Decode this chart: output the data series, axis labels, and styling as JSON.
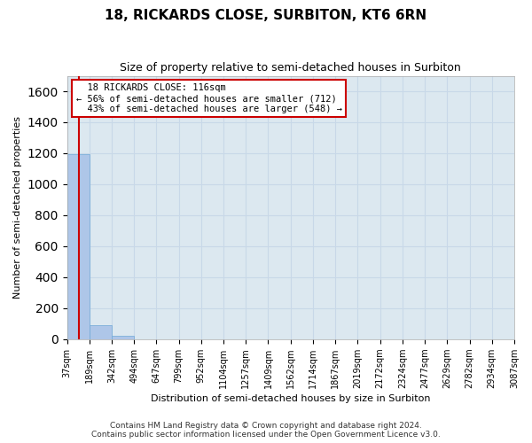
{
  "title": "18, RICKARDS CLOSE, SURBITON, KT6 6RN",
  "subtitle": "Size of property relative to semi-detached houses in Surbiton",
  "xlabel": "Distribution of semi-detached houses by size in Surbiton",
  "ylabel": "Number of semi-detached properties",
  "bin_edges": [
    37,
    189,
    342,
    494,
    647,
    799,
    952,
    1104,
    1257,
    1409,
    1562,
    1714,
    1867,
    2019,
    2172,
    2324,
    2477,
    2629,
    2782,
    2934,
    3087
  ],
  "bin_labels": [
    "37sqm",
    "189sqm",
    "342sqm",
    "494sqm",
    "647sqm",
    "799sqm",
    "952sqm",
    "1104sqm",
    "1257sqm",
    "1409sqm",
    "1562sqm",
    "1714sqm",
    "1867sqm",
    "2019sqm",
    "2172sqm",
    "2324sqm",
    "2477sqm",
    "2629sqm",
    "2782sqm",
    "2934sqm",
    "3087sqm"
  ],
  "bar_values": [
    1192,
    90,
    20,
    0,
    0,
    0,
    0,
    0,
    0,
    0,
    0,
    0,
    0,
    0,
    0,
    0,
    0,
    0,
    0,
    0
  ],
  "bar_color": "#aec6e8",
  "bar_edge_color": "#6fa8d6",
  "ylim": [
    0,
    1700
  ],
  "yticks": [
    0,
    200,
    400,
    600,
    800,
    1000,
    1200,
    1400,
    1600
  ],
  "property_size": 116,
  "property_label": "18 RICKARDS CLOSE: 116sqm",
  "pct_smaller": 56,
  "num_smaller": 712,
  "pct_larger": 43,
  "num_larger": 548,
  "annotation_box_color": "#ffffff",
  "annotation_box_edge_color": "#cc0000",
  "red_line_color": "#cc0000",
  "grid_color": "#c8d8e8",
  "bg_color": "#dce8f0",
  "footer_line1": "Contains HM Land Registry data © Crown copyright and database right 2024.",
  "footer_line2": "Contains public sector information licensed under the Open Government Licence v3.0."
}
